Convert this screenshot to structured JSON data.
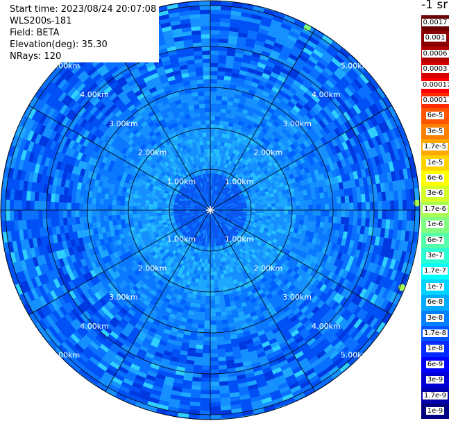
{
  "header": {
    "start_time": "Start time: 2023/08/24 20:07:08",
    "instrument": "WLS200s-181",
    "field": "Field: BETA",
    "elevation": "Elevation(deg): 35.30",
    "nrays": "NRays: 120"
  },
  "colorbar": {
    "unit_title": "-1 sr",
    "labels": [
      "0.0017",
      "0.001",
      "0.0006",
      "0.0003",
      "0.00017",
      "0.0001",
      "6e-5",
      "3e-5",
      "1.7e-5",
      "1e-5",
      "6e-6",
      "3e-6",
      "1.7e-6",
      "1e-6",
      "6e-7",
      "3e-7",
      "1.7e-7",
      "1e-7",
      "6e-8",
      "3e-8",
      "1.7e-8",
      "1e-8",
      "6e-9",
      "3e-9",
      "1.7e-9",
      "1e-9"
    ],
    "colors": [
      "#6b0000",
      "#8b0000",
      "#b30000",
      "#d40000",
      "#ff0000",
      "#ff2a00",
      "#ff5500",
      "#ff8000",
      "#ffaa00",
      "#ffd400",
      "#ffff00",
      "#d4ff2a",
      "#aaff55",
      "#80ff80",
      "#55ffaa",
      "#2affd4",
      "#00ffff",
      "#00d4ff",
      "#00aaff",
      "#0080ff",
      "#0055ff",
      "#002aff",
      "#0000ff",
      "#0000d4",
      "#0000aa",
      "#000080"
    ]
  },
  "chart_data": {
    "type": "heatmap",
    "title": "",
    "projection": "polar (PPI)",
    "range_rings_km": [
      1,
      2,
      3,
      4,
      5
    ],
    "ring_labels": [
      "1.00km",
      "2.00km",
      "3.00km",
      "4.00km",
      "5.00km"
    ],
    "max_range_km": 5.0,
    "nrays": 120,
    "elevation_deg": 35.3,
    "field": "BETA",
    "dominant_range": "1.7e-8 to 1e-7 sr-1",
    "near_range_value": "about 1.7e-8",
    "annulus_1_to_2km_value": "about 6e-8 to 1e-7",
    "spokes_deg": [
      0,
      30,
      60,
      90,
      120,
      150,
      180,
      210,
      240,
      270,
      300,
      330
    ]
  }
}
